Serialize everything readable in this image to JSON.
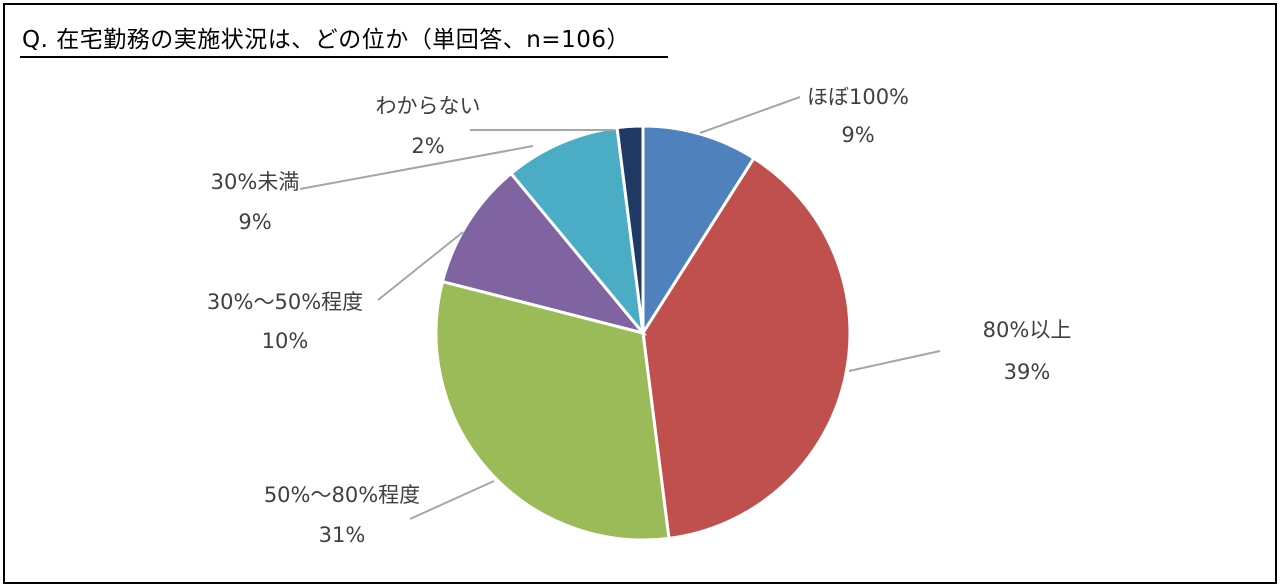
{
  "title": "Q.  在宅勤務の実施状況は、どの位か（単回答、n=106）",
  "chart_data": {
    "type": "pie",
    "title": "Q.  在宅勤務の実施状況は、どの位か（単回答、n=106）",
    "categories": [
      "ほぼ100%",
      "80%以上",
      "50%～80%程度",
      "30%～50%程度",
      "30%未満",
      "わからない"
    ],
    "values": [
      9,
      39,
      31,
      10,
      9,
      2
    ],
    "value_labels": [
      "9%",
      "39%",
      "31%",
      "10%",
      "9%",
      "2%"
    ],
    "colors": [
      "#4f81bd",
      "#c0504d",
      "#9bbb59",
      "#8064a2",
      "#4bacc6",
      "#1f3864"
    ],
    "start": "top, clockwise",
    "legend": "none (callout labels)"
  }
}
